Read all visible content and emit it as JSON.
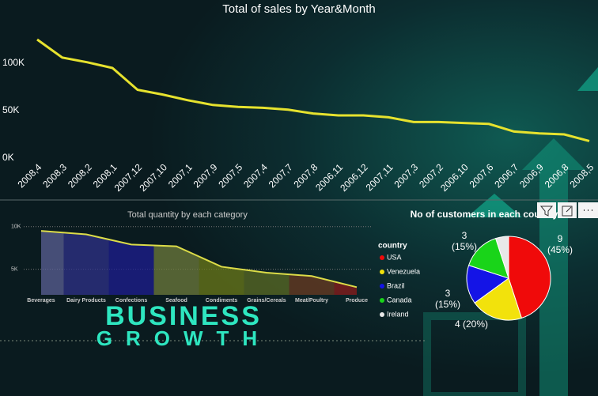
{
  "chart_data": [
    {
      "type": "line",
      "title": "Total of sales by Year&Month",
      "categories": [
        "2008,4",
        "2008,3",
        "2008,2",
        "2008,1",
        "2007,12",
        "2007,10",
        "2007,1",
        "2007,9",
        "2007,5",
        "2007,4",
        "2007,7",
        "2007,8",
        "2006,11",
        "2006,12",
        "2007,11",
        "2007,3",
        "2007,2",
        "2006,10",
        "2007,6",
        "2006,7",
        "2006,9",
        "2006,8",
        "2008,5"
      ],
      "values": [
        125000,
        106000,
        101000,
        95000,
        72000,
        67000,
        61000,
        56000,
        54000,
        53000,
        51000,
        47000,
        45000,
        45000,
        43000,
        38000,
        38000,
        37000,
        36000,
        28000,
        26000,
        25000,
        18000
      ],
      "color": "#e6e22e",
      "ylim": [
        0,
        150000
      ],
      "yticks": [
        {
          "value": 0,
          "label": "0K"
        },
        {
          "value": 50000,
          "label": "50K"
        },
        {
          "value": 100000,
          "label": "100K"
        }
      ]
    },
    {
      "type": "area",
      "title": "Total quantity by each category",
      "categories": [
        "Beverages",
        "Dairy Products",
        "Confections",
        "Seafood",
        "Condiments",
        "Grains/Cereals",
        "Meat/Poultry",
        "Produce"
      ],
      "values": [
        9500,
        9100,
        7900,
        7700,
        5300,
        4600,
        4200,
        2900
      ],
      "colors": [
        "#5b6096",
        "#2f318a",
        "#1d1d92",
        "#6d7b3c",
        "#6b7a1a",
        "#5b6b24",
        "#6b3b22",
        "#8c1b1b"
      ],
      "line_color": "#dcdc48",
      "ylim": [
        2000,
        11000
      ],
      "yticks": [
        {
          "value": 5000,
          "label": "5K"
        },
        {
          "value": 10000,
          "label": "10K"
        }
      ],
      "grid": true
    },
    {
      "type": "pie",
      "title": "No of customers in each country",
      "legend_title": "country",
      "categories": [
        "USA",
        "Venezuela",
        "Brazil",
        "Canada",
        "Ireland"
      ],
      "values": [
        9,
        4,
        3,
        3,
        1
      ],
      "value_labels": [
        "9\n(45%)",
        "4 (20%)",
        "3\n(15%)",
        "3\n(15%)",
        null
      ],
      "colors": [
        "#f00a0a",
        "#f2e20c",
        "#1414e6",
        "#19d419",
        "#e8e8e8"
      ]
    }
  ],
  "banner": {
    "line1": "BUSINESS",
    "line2": "GROWTH"
  }
}
